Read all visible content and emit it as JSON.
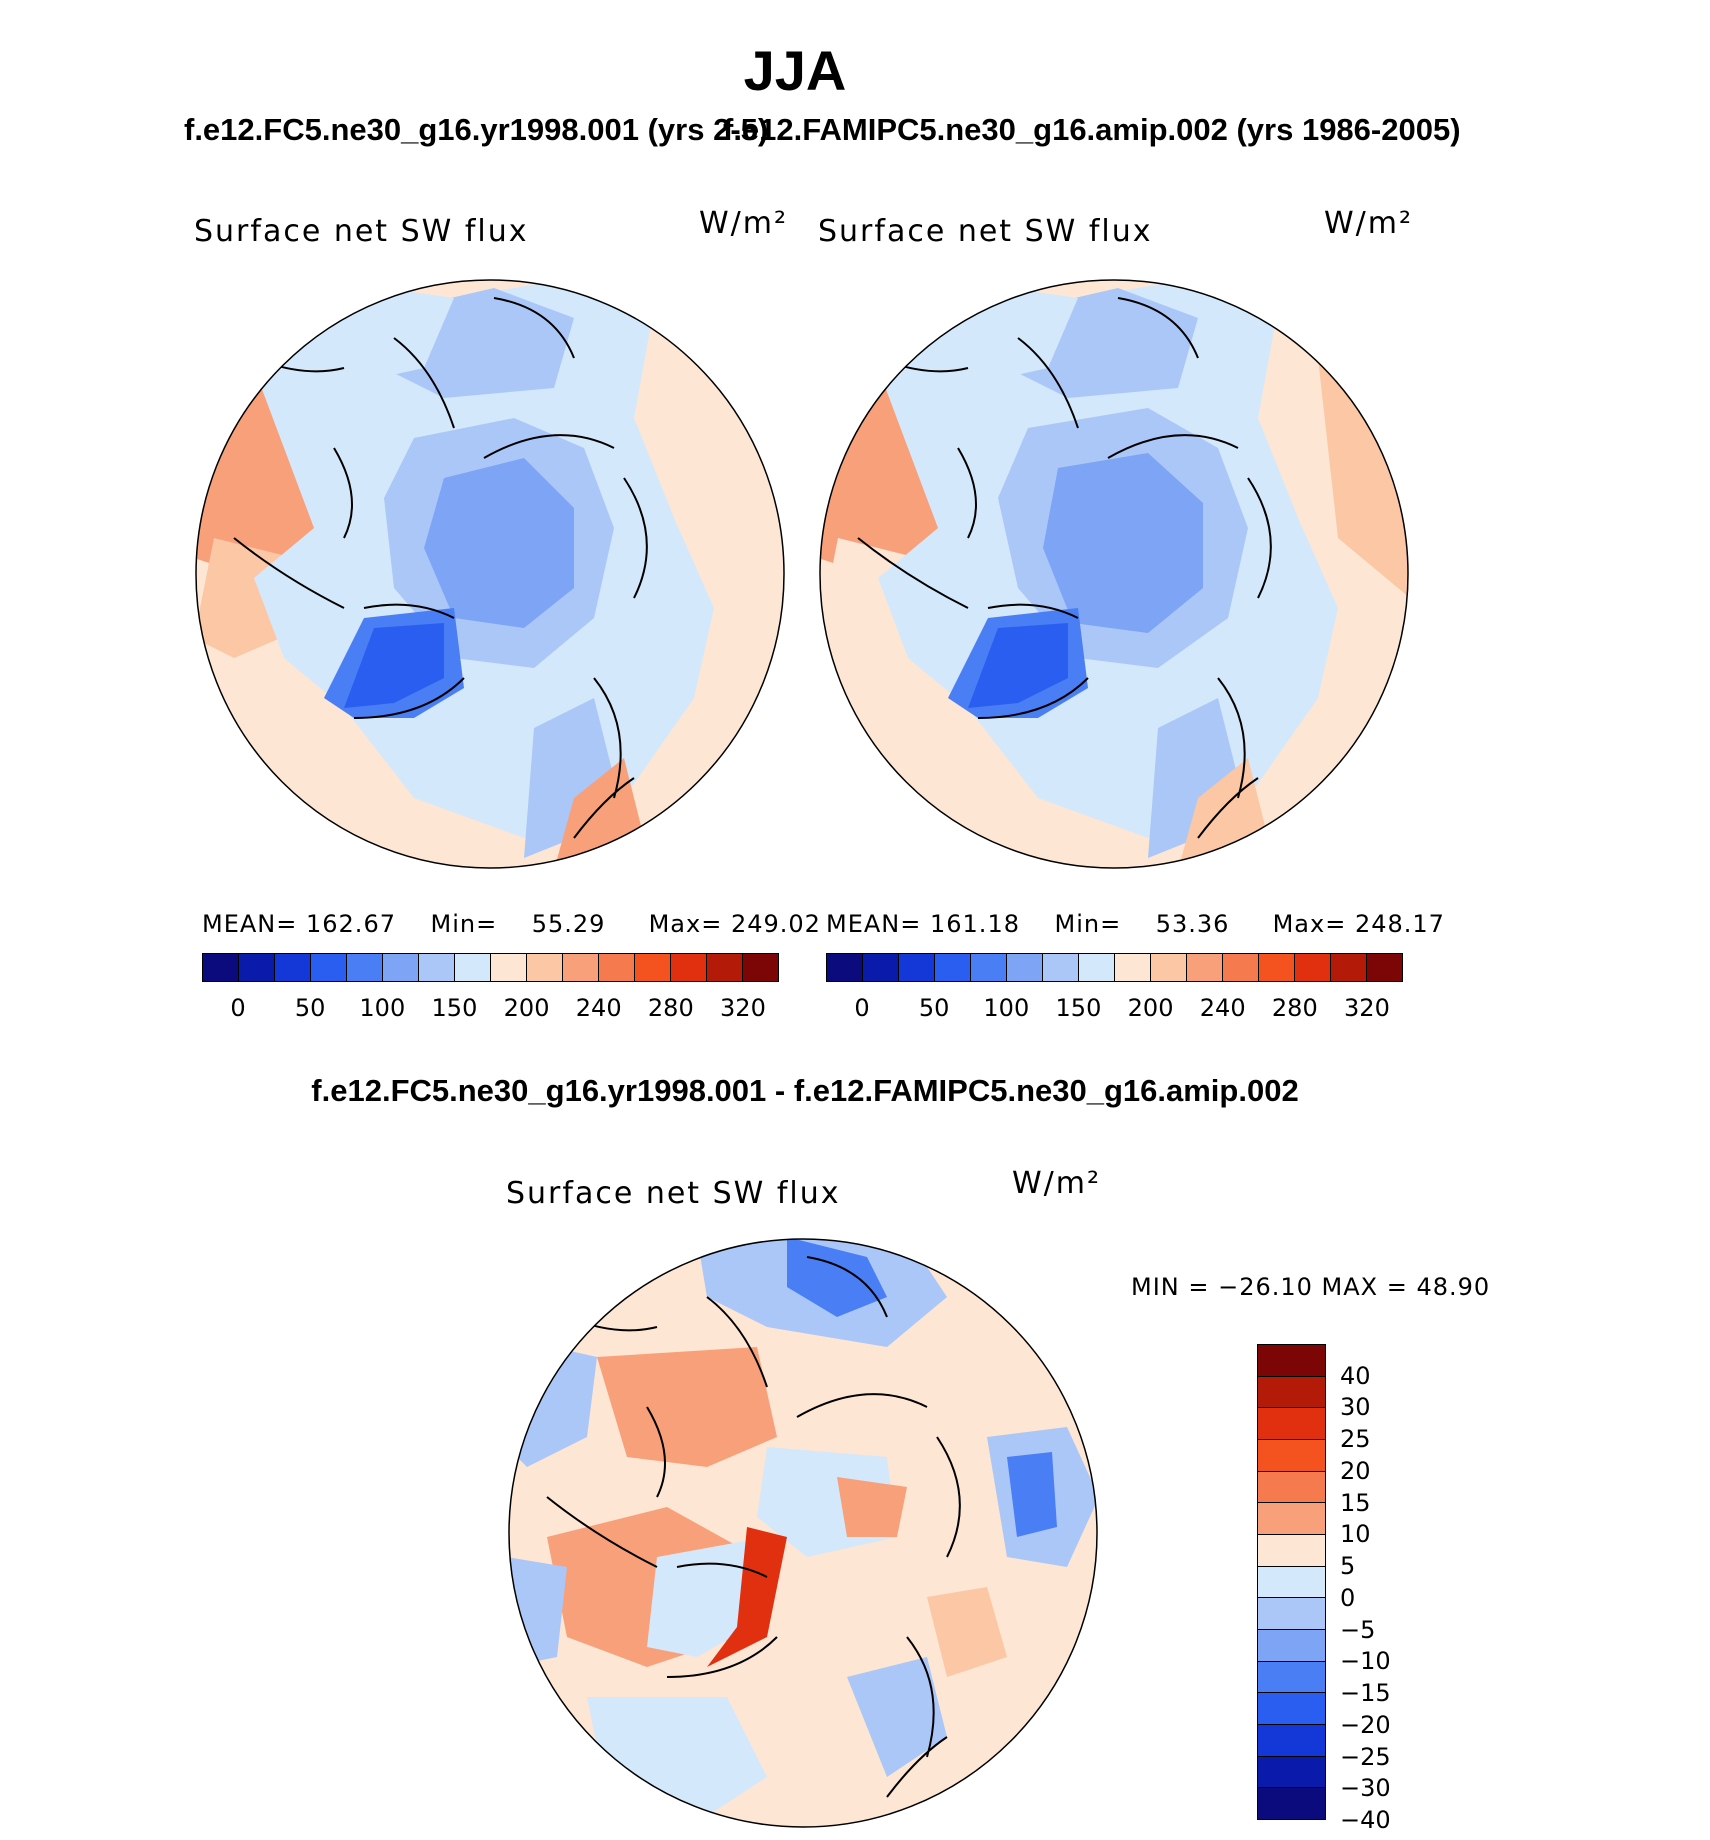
{
  "title": "JJA",
  "panels": [
    {
      "case_label": "f.e12.FC5.ne30_g16.yr1998.001 (yrs 2-5)",
      "variable": "Surface net SW flux",
      "units": "W/m²",
      "stats": {
        "mean_label": "MEAN=",
        "mean": "162.67",
        "min_label": "Min=",
        "min": "55.29",
        "max_label": "Max=",
        "max": "249.02"
      }
    },
    {
      "case_label": "f.e12.FAMIPC5.ne30_g16.amip.002 (yrs 1986-2005)",
      "variable": "Surface net SW flux",
      "units": "W/m²",
      "stats": {
        "mean_label": "MEAN=",
        "mean": "161.18",
        "min_label": "Min=",
        "min": "53.36",
        "max_label": "Max=",
        "max": "248.17"
      }
    }
  ],
  "diff_panel": {
    "case_label": "f.e12.FC5.ne30_g16.yr1998.001 - f.e12.FAMIPC5.ne30_g16.amip.002",
    "variable": "Surface net SW flux",
    "units": "W/m²",
    "minmax_text": "MIN = −26.10 MAX =   48.90"
  },
  "colorbar_abs": {
    "colors": [
      "#0b0b7e",
      "#0a1aab",
      "#1437d8",
      "#2a5ef0",
      "#4a7ef5",
      "#7ea4f6",
      "#aac7f8",
      "#d4e8fb",
      "#fde6d4",
      "#fbc7a5",
      "#f7a07a",
      "#f57a4e",
      "#f4531f",
      "#e03010",
      "#b41a08",
      "#7c0505"
    ],
    "tick_labels": [
      "0",
      "50",
      "100",
      "150",
      "200",
      "240",
      "280",
      "320"
    ]
  },
  "colorbar_diff": {
    "colors": [
      "#7c0505",
      "#b41a08",
      "#e03010",
      "#f4531f",
      "#f57a4e",
      "#f7a07a",
      "#fde6d4",
      "#d4e8fb",
      "#aac7f8",
      "#7ea4f6",
      "#4a7ef5",
      "#2a5ef0",
      "#1437d8",
      "#0a1aab",
      "#0b0b7e"
    ],
    "tick_labels": [
      "40",
      "30",
      "25",
      "20",
      "15",
      "10",
      "5",
      "0",
      "−5",
      "−10",
      "−15",
      "−20",
      "−25",
      "−30",
      "−40"
    ]
  }
}
